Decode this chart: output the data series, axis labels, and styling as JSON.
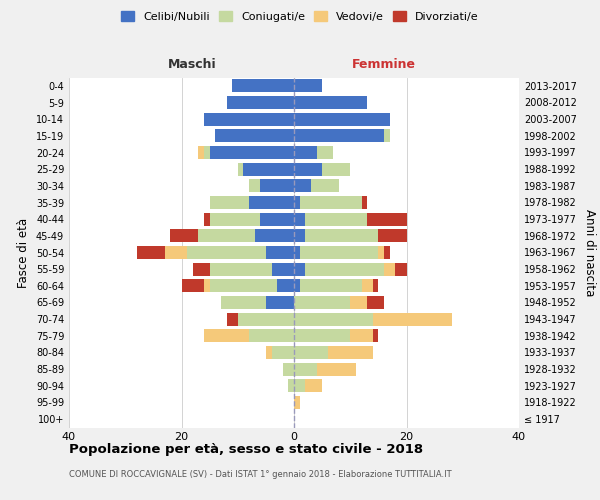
{
  "age_groups": [
    "100+",
    "95-99",
    "90-94",
    "85-89",
    "80-84",
    "75-79",
    "70-74",
    "65-69",
    "60-64",
    "55-59",
    "50-54",
    "45-49",
    "40-44",
    "35-39",
    "30-34",
    "25-29",
    "20-24",
    "15-19",
    "10-14",
    "5-9",
    "0-4"
  ],
  "birth_years": [
    "≤ 1917",
    "1918-1922",
    "1923-1927",
    "1928-1932",
    "1933-1937",
    "1938-1942",
    "1943-1947",
    "1948-1952",
    "1953-1957",
    "1958-1962",
    "1963-1967",
    "1968-1972",
    "1973-1977",
    "1978-1982",
    "1983-1987",
    "1988-1992",
    "1993-1997",
    "1998-2002",
    "2003-2007",
    "2008-2012",
    "2013-2017"
  ],
  "maschi": {
    "celibi": [
      0,
      0,
      0,
      0,
      0,
      0,
      0,
      5,
      3,
      4,
      5,
      7,
      6,
      8,
      6,
      9,
      15,
      14,
      16,
      12,
      11
    ],
    "coniugati": [
      0,
      0,
      1,
      2,
      4,
      8,
      10,
      8,
      12,
      11,
      14,
      10,
      9,
      7,
      2,
      1,
      1,
      0,
      0,
      0,
      0
    ],
    "vedovi": [
      0,
      0,
      0,
      0,
      1,
      8,
      0,
      0,
      1,
      0,
      4,
      0,
      0,
      0,
      0,
      0,
      1,
      0,
      0,
      0,
      0
    ],
    "divorziati": [
      0,
      0,
      0,
      0,
      0,
      0,
      2,
      0,
      4,
      3,
      5,
      5,
      1,
      0,
      0,
      0,
      0,
      0,
      0,
      0,
      0
    ]
  },
  "femmine": {
    "nubili": [
      0,
      0,
      0,
      0,
      0,
      0,
      0,
      0,
      1,
      2,
      1,
      2,
      2,
      1,
      3,
      5,
      4,
      16,
      17,
      13,
      5
    ],
    "coniugate": [
      0,
      0,
      2,
      4,
      6,
      10,
      14,
      10,
      11,
      14,
      14,
      13,
      11,
      11,
      5,
      5,
      3,
      1,
      0,
      0,
      0
    ],
    "vedove": [
      0,
      1,
      3,
      7,
      8,
      4,
      14,
      3,
      2,
      2,
      1,
      0,
      0,
      0,
      0,
      0,
      0,
      0,
      0,
      0,
      0
    ],
    "divorziate": [
      0,
      0,
      0,
      0,
      0,
      1,
      0,
      3,
      1,
      2,
      1,
      5,
      7,
      1,
      0,
      0,
      0,
      0,
      0,
      0,
      0
    ]
  },
  "colors": {
    "celibi_nubili": "#4472c4",
    "coniugati": "#c5d9a0",
    "vedovi": "#f5c97a",
    "divorziati": "#c0392b"
  },
  "xlim": 40,
  "title": "Popolazione per età, sesso e stato civile - 2018",
  "subtitle": "COMUNE DI ROCCAVIGNALE (SV) - Dati ISTAT 1° gennaio 2018 - Elaborazione TUTTITALIA.IT",
  "ylabel_left": "Fasce di età",
  "ylabel_right": "Anni di nascita",
  "label_maschi": "Maschi",
  "label_femmine": "Femmine",
  "bg_color": "#f0f0f0",
  "plot_bg_color": "#ffffff"
}
